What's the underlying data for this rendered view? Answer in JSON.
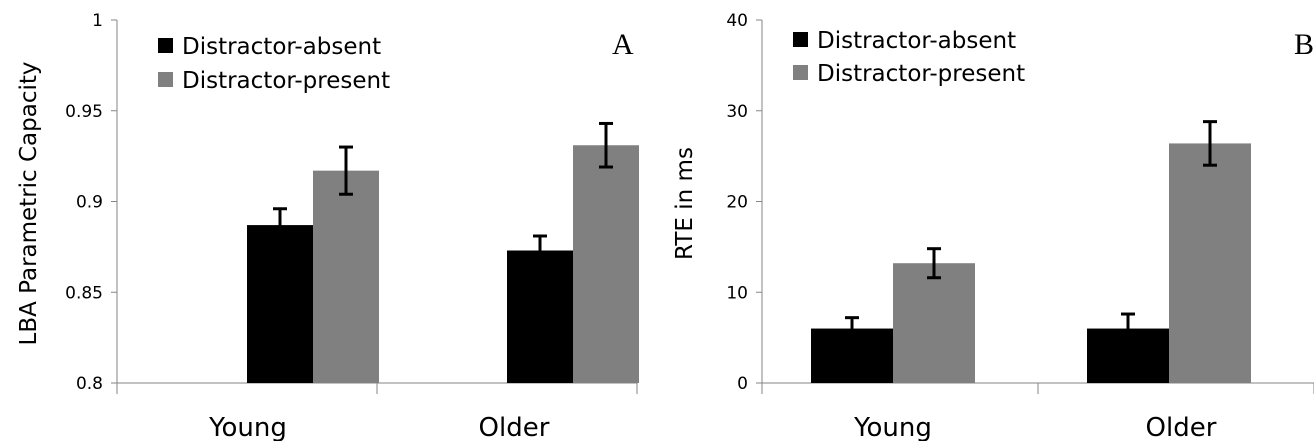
{
  "chart_data": [
    {
      "type": "bar",
      "panel_label": "A",
      "ylabel": "LBA Parametric Capacity",
      "xlabel": "",
      "categories": [
        "Young",
        "Older"
      ],
      "ylim": [
        0.8,
        1
      ],
      "yticks": [
        "0.8",
        "0.85",
        "0.9",
        "0.95",
        "1"
      ],
      "series": [
        {
          "name": "Distractor-absent",
          "color": "#000000",
          "values": [
            0.887,
            0.873
          ],
          "errors": [
            0.009,
            0.008
          ]
        },
        {
          "name": "Distractor-present",
          "color": "#808080",
          "values": [
            0.917,
            0.931
          ],
          "errors": [
            0.013,
            0.012
          ]
        }
      ],
      "legend_position": "top-left",
      "grid": false
    },
    {
      "type": "bar",
      "panel_label": "B",
      "ylabel": "RTE in ms",
      "xlabel": "",
      "categories": [
        "Young",
        "Older"
      ],
      "ylim": [
        0,
        40
      ],
      "yticks": [
        "0",
        "10",
        "20",
        "30",
        "40"
      ],
      "series": [
        {
          "name": "Distractor-absent",
          "color": "#000000",
          "values": [
            6,
            6
          ],
          "errors": [
            1.2,
            1.6
          ]
        },
        {
          "name": "Distractor-present",
          "color": "#808080",
          "values": [
            13.2,
            26.4
          ],
          "errors": [
            1.6,
            2.4
          ]
        }
      ],
      "legend_position": "top-left",
      "grid": false
    }
  ]
}
